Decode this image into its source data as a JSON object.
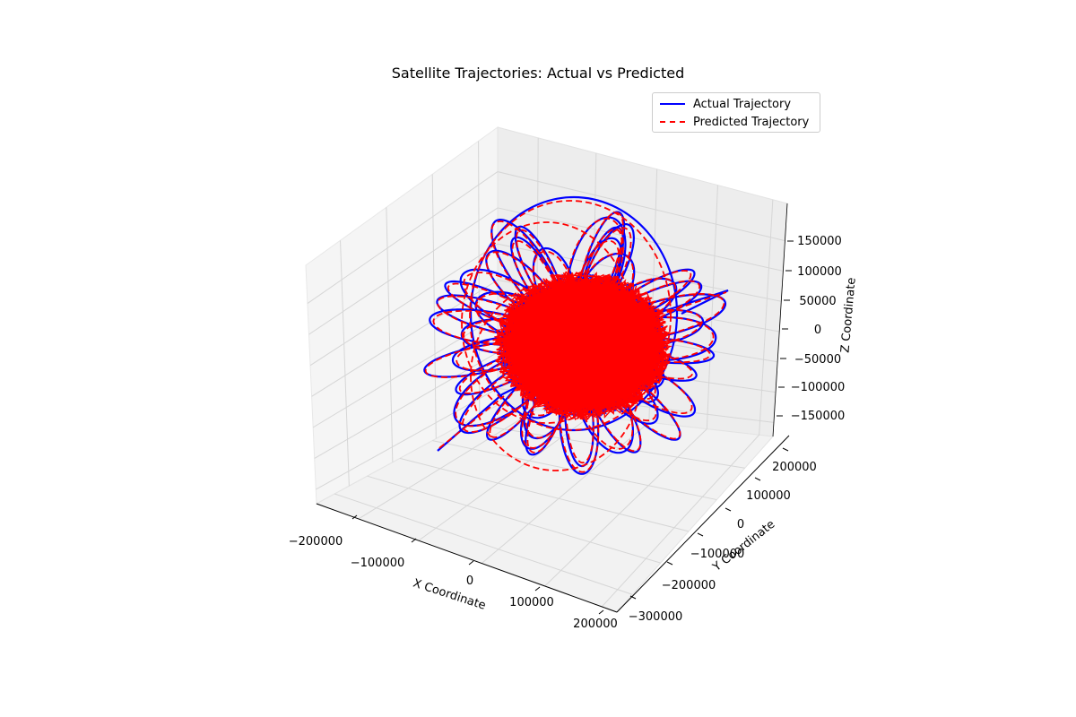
{
  "chart_data": {
    "type": "line",
    "projection": "3d",
    "title": "Satellite Trajectories: Actual vs Predicted",
    "xlabel": "X Coordinate",
    "ylabel": "Y Coordinate",
    "zlabel": "Z Coordinate",
    "x_ticks": [
      "−200000",
      "−100000",
      "0",
      "100000",
      "200000"
    ],
    "y_ticks": [
      "−300000",
      "−200000",
      "−100000",
      "0",
      "100000",
      "200000"
    ],
    "z_ticks": [
      "−150000",
      "−100000",
      "−50000",
      "0",
      "50000",
      "100000",
      "150000"
    ],
    "grid": true,
    "legend_position": "top-right",
    "series": [
      {
        "name": "Actual Trajectory",
        "color": "#0000ff",
        "style": "solid"
      },
      {
        "name": "Predicted Trajectory",
        "color": "#ff0000",
        "style": "dashed"
      }
    ]
  }
}
